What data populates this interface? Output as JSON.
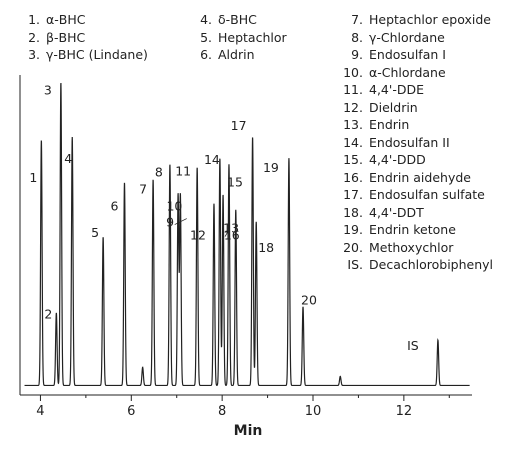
{
  "chart_data": {
    "type": "line",
    "xlabel": "Min",
    "ylabel": "",
    "title": "",
    "xlim": [
      3.55,
      13.5
    ],
    "ylim": [
      0,
      100
    ],
    "x_ticks": [
      4,
      6,
      8,
      10,
      12
    ],
    "x_tick_labels": [
      "4",
      "6",
      "8",
      "10",
      "12"
    ],
    "baseline": 1.5,
    "peaks": [
      {
        "label": "1",
        "x": 4.02,
        "height": 81
      },
      {
        "label": "2",
        "x": 4.35,
        "height": 24
      },
      {
        "label": "3",
        "x": 4.45,
        "height": 100
      },
      {
        "label": "4",
        "x": 4.7,
        "height": 82
      },
      {
        "label": "5",
        "x": 5.38,
        "height": 49
      },
      {
        "label": "6",
        "x": 5.85,
        "height": 67
      },
      {
        "label": "",
        "x": 6.25,
        "height": 6
      },
      {
        "label": "7",
        "x": 6.48,
        "height": 68
      },
      {
        "label": "8",
        "x": 6.85,
        "height": 73
      },
      {
        "label": "9",
        "x": 7.03,
        "height": 63
      },
      {
        "label": "10",
        "x": 7.08,
        "height": 63
      },
      {
        "label": "11",
        "x": 7.45,
        "height": 72
      },
      {
        "label": "12",
        "x": 7.82,
        "height": 60
      },
      {
        "label": "13",
        "x": 8.02,
        "height": 63
      },
      {
        "label": "14",
        "x": 7.95,
        "height": 75
      },
      {
        "label": "15",
        "x": 8.15,
        "height": 73
      },
      {
        "label": "16",
        "x": 8.3,
        "height": 58
      },
      {
        "label": "17",
        "x": 8.67,
        "height": 82
      },
      {
        "label": "18",
        "x": 8.75,
        "height": 54
      },
      {
        "label": "19",
        "x": 9.47,
        "height": 75
      },
      {
        "label": "20",
        "x": 9.78,
        "height": 26
      },
      {
        "label": "",
        "x": 10.6,
        "height": 3
      },
      {
        "label": "IS",
        "x": 12.75,
        "height": 15
      }
    ],
    "legend_columns": [
      [
        {
          "num": "1.",
          "name": "α-BHC"
        },
        {
          "num": "2.",
          "name": "β-BHC"
        },
        {
          "num": "3.",
          "name": "γ-BHC (Lindane)"
        }
      ],
      [
        {
          "num": "4.",
          "name": "δ-BHC"
        },
        {
          "num": "5.",
          "name": "Heptachlor"
        },
        {
          "num": "6.",
          "name": "Aldrin"
        }
      ],
      [
        {
          "num": "7.",
          "name": "Heptachlor epoxide"
        },
        {
          "num": "8.",
          "name": "γ-Chlordane"
        },
        {
          "num": "9.",
          "name": "Endosulfan I"
        },
        {
          "num": "10.",
          "name": "α-Chlordane"
        },
        {
          "num": "11.",
          "name": "4,4'-DDE"
        },
        {
          "num": "12.",
          "name": "Dieldrin"
        },
        {
          "num": "13.",
          "name": "Endrin"
        },
        {
          "num": "14.",
          "name": "Endosulfan II"
        },
        {
          "num": "15.",
          "name": "4,4'-DDD"
        },
        {
          "num": "16.",
          "name": "Endrin aidehyde"
        },
        {
          "num": "17.",
          "name": "Endosulfan sulfate"
        },
        {
          "num": "18.",
          "name": "4,4'-DDT"
        },
        {
          "num": "19.",
          "name": "Endrin ketone"
        },
        {
          "num": "20.",
          "name": "Methoxychlor"
        },
        {
          "num": "IS.",
          "name": "Decachlorobiphenyl"
        }
      ]
    ]
  }
}
